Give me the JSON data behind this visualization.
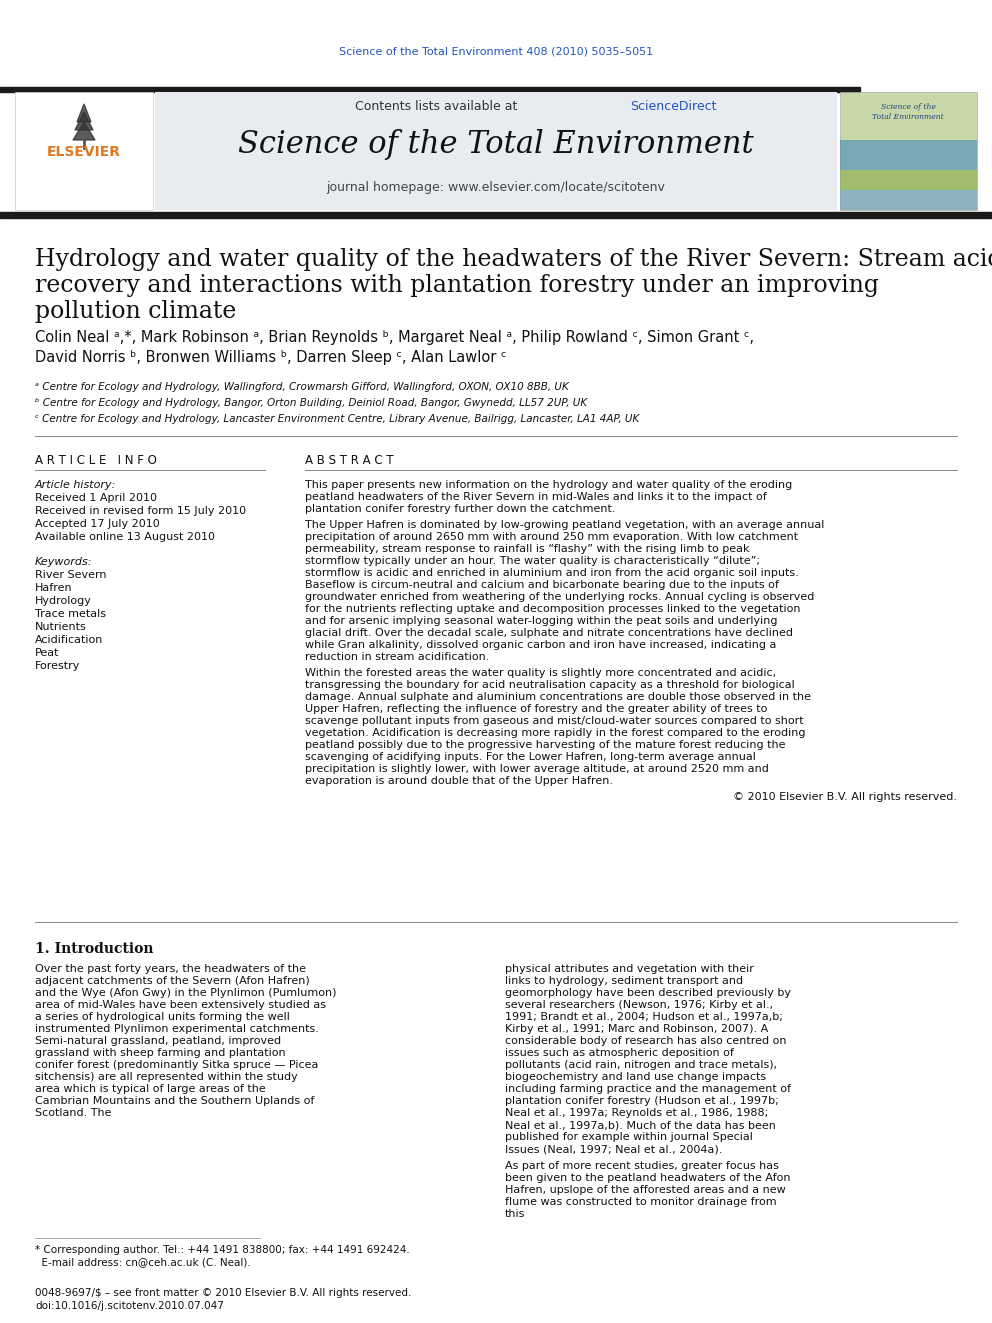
{
  "doi_text": "Science of the Total Environment 408 (2010) 5035–5051",
  "journal_name": "Science of the Total Environment",
  "journal_homepage": "journal homepage: www.elsevier.com/locate/scitotenv",
  "contents_text": "Contents lists available at ScienceDirect",
  "elsevier_text": "ELSEVIER",
  "title_line1": "Hydrology and water quality of the headwaters of the River Severn: Stream acidity",
  "title_line2": "recovery and interactions with plantation forestry under an improving",
  "title_line3": "pollution climate",
  "author_line1": "Colin Neal ᵃ,*, Mark Robinson ᵃ, Brian Reynolds ᵇ, Margaret Neal ᵃ, Philip Rowland ᶜ, Simon Grant ᶜ,",
  "author_line2": "David Norris ᵇ, Bronwen Williams ᵇ, Darren Sleep ᶜ, Alan Lawlor ᶜ",
  "affil_a": "ᵃ Centre for Ecology and Hydrology, Wallingford, Crowmarsh Gifford, Wallingford, OXON, OX10 8BB, UK",
  "affil_b": "ᵇ Centre for Ecology and Hydrology, Bangor, Orton Building, Deiniol Road, Bangor, Gwynedd, LL57 2UP, UK",
  "affil_c": "ᶜ Centre for Ecology and Hydrology, Lancaster Environment Centre, Library Avenue, Bailrigg, Lancaster, LA1 4AP, UK",
  "article_info_header": "A R T I C L E   I N F O",
  "abstract_header": "A B S T R A C T",
  "article_history_label": "Article history:",
  "received": "Received 1 April 2010",
  "revised": "Received in revised form 15 July 2010",
  "accepted": "Accepted 17 July 2010",
  "online": "Available online 13 August 2010",
  "keywords_label": "Keywords:",
  "keywords": [
    "River Severn",
    "Hafren",
    "Hydrology",
    "Trace metals",
    "Nutrients",
    "Acidification",
    "Peat",
    "Forestry"
  ],
  "abstract_para1": "This paper presents new information on the hydrology and water quality of the eroding peatland headwaters of the River Severn in mid-Wales and links it to the impact of plantation conifer forestry further down the catchment.",
  "abstract_para2": "The Upper Hafren is dominated by low-growing peatland vegetation, with an average annual precipitation of around 2650 mm with around 250 mm evaporation. With low catchment permeability, stream response to rainfall is “flashy” with the rising limb to peak stormflow typically under an hour. The water quality is characteristically “dilute”; stormflow is acidic and enriched in aluminium and iron from the acid organic soil inputs. Baseflow is circum-neutral and calcium and bicarbonate bearing due to the inputs of groundwater enriched from weathering of the underlying rocks. Annual cycling is observed for the nutrients reflecting uptake and decomposition processes linked to the vegetation and for arsenic implying seasonal water-logging within the peat soils and underlying glacial drift. Over the decadal scale, sulphate and nitrate concentrations have declined while Gran alkalinity, dissolved organic carbon and iron have increased, indicating a reduction in stream acidification.",
  "abstract_para3": "Within the forested areas the water quality is slightly more concentrated and acidic, transgressing the boundary for acid neutralisation capacity as a threshold for biological damage. Annual sulphate and aluminium concentrations are double those observed in the Upper Hafren, reflecting the influence of forestry and the greater ability of trees to scavenge pollutant inputs from gaseous and mist/cloud-water sources compared to short vegetation. Acidification is decreasing more rapidly in the forest compared to the eroding peatland possibly due to the progressive harvesting of the mature forest reducing the scavenging of acidifying inputs. For the Lower Hafren, long-term average annual precipitation is slightly lower, with lower average altitude, at around 2520 mm and evaporation is around double that of the Upper Hafren.",
  "abstract_copyright": "© 2010 Elsevier B.V. All rights reserved.",
  "intro_header": "1. Introduction",
  "intro_text_left": "Over the past forty years, the headwaters of the adjacent catchments of the Severn (Afon Hafren) and the Wye (Afon Gwy) in the Plynlimon (Pumlumon) area of mid-Wales have been extensively studied as a series of hydrological units forming the well instrumented Plynlimon experimental catchments. Semi-natural grassland, peatland, improved grassland with sheep farming and plantation conifer forest (predominantly Sitka spruce — Picea sitchensis) are all represented within the study area which is typical of large areas of the Cambrian Mountains and the Southern Uplands of Scotland. The",
  "intro_text_right_p1": "physical attributes and vegetation with their links to hydrology, sediment transport and geomorphology have been described previously by several researchers (Newson, 1976; Kirby et al., 1991; Brandt et al., 2004; Hudson et al., 1997a,b; Kirby et al., 1991; Marc and Robinson, 2007). A considerable body of research has also centred on issues such as atmospheric deposition of pollutants (acid rain, nitrogen and trace metals), biogeochemistry and land use change impacts including farming practice and the management of plantation conifer forestry (Hudson et al., 1997b; Neal et al., 1997a; Reynolds et al., 1986, 1988; Neal et al., 1997a,b). Much of the data has been published for example within journal Special Issues (Neal, 1997; Neal et al., 2004a).",
  "intro_text_right_p2": "As part of more recent studies, greater focus has been given to the peatland headwaters of the Afon Hafren, upslope of the afforested areas and a new flume was constructed to monitor drainage from this",
  "footnote_line1": "* Corresponding author. Tel.: +44 1491 838800; fax: +44 1491 692424.",
  "footnote_line2": "  E-mail address: cn@ceh.ac.uk (C. Neal).",
  "footer_line1": "0048-9697/$ – see front matter © 2010 Elsevier B.V. All rights reserved.",
  "footer_line2": "doi:10.1016/j.scitotenv.2010.07.047",
  "bg_color": "#ffffff",
  "blue_color": "#2255bb",
  "header_bg": "#e8ecf0",
  "black_bar": "#1a1a1a",
  "text_color": "#111111",
  "orange_color": "#E07820",
  "link_color": "#2255bb"
}
